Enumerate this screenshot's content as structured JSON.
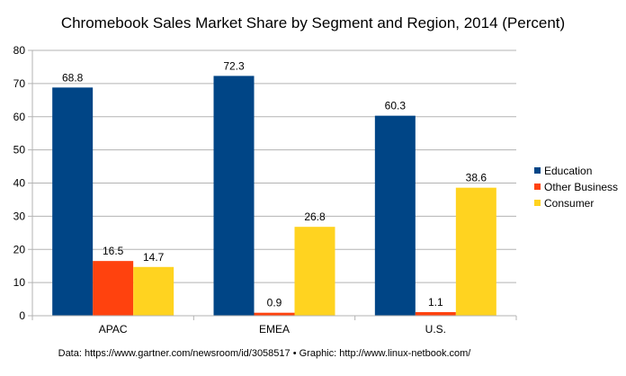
{
  "chart_data": {
    "type": "bar",
    "title": "Chromebook Sales Market Share by Segment and Region, 2014 (Percent)",
    "categories": [
      "APAC",
      "EMEA",
      "U.S."
    ],
    "series": [
      {
        "name": "Education",
        "color": "#004586",
        "values": [
          68.8,
          72.3,
          60.3
        ]
      },
      {
        "name": "Other Business",
        "color": "#ff420e",
        "values": [
          16.5,
          0.9,
          1.1
        ]
      },
      {
        "name": "Consumer",
        "color": "#ffd320",
        "values": [
          14.7,
          26.8,
          38.6
        ]
      }
    ],
    "ylim": [
      0,
      80
    ],
    "yticks": [
      0,
      10,
      20,
      30,
      40,
      50,
      60,
      70,
      80
    ],
    "xlabel": "",
    "ylabel": "",
    "legend": "right",
    "source": "Data: https://www.gartner.com/newsroom/id/3058517 • Graphic: http://www.linux-netbook.com/"
  }
}
